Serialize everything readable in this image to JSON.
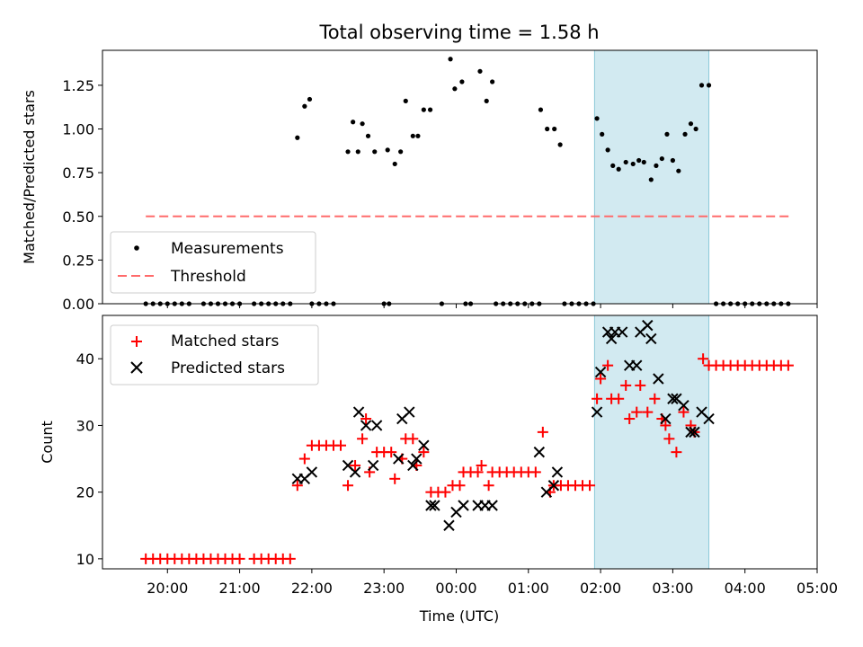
{
  "chart_data": [
    {
      "type": "scatter",
      "title": "Total observing time = 1.58 h",
      "xlabel": "",
      "ylabel": "Matched/Predicted stars",
      "xlim": [
        -4.9,
        5.0
      ],
      "ylim": [
        0,
        1.45
      ],
      "yticks": [
        "0.00",
        "0.25",
        "0.50",
        "0.75",
        "1.00",
        "1.25"
      ],
      "grid": false,
      "legend_position": "lower-left",
      "shaded_interval": {
        "start": "01:55",
        "end": "03:30",
        "color": "#add8e6"
      },
      "threshold": {
        "name": "Threshold",
        "value": 0.5,
        "x_range": [
          -4.3,
          4.65
        ],
        "color": "#ff0000",
        "style": "dashed"
      },
      "series": [
        {
          "name": "Measurements",
          "color": "#000000",
          "marker": "dot",
          "points": [
            [
              -4.3,
              0
            ],
            [
              -4.2,
              0
            ],
            [
              -4.1,
              0
            ],
            [
              -4.0,
              0
            ],
            [
              -3.9,
              0
            ],
            [
              -3.8,
              0
            ],
            [
              -3.7,
              0
            ],
            [
              -3.5,
              0
            ],
            [
              -3.4,
              0
            ],
            [
              -3.3,
              0
            ],
            [
              -3.2,
              0
            ],
            [
              -3.1,
              0
            ],
            [
              -3.0,
              0
            ],
            [
              -2.8,
              0
            ],
            [
              -2.7,
              0
            ],
            [
              -2.6,
              0
            ],
            [
              -2.5,
              0
            ],
            [
              -2.4,
              0
            ],
            [
              -2.3,
              0
            ],
            [
              -2.2,
              0.95
            ],
            [
              -2.1,
              1.13
            ],
            [
              -2.03,
              1.17
            ],
            [
              -2.0,
              0
            ],
            [
              -1.9,
              0
            ],
            [
              -1.8,
              0
            ],
            [
              -1.7,
              0
            ],
            [
              -1.5,
              0.87
            ],
            [
              -1.43,
              1.04
            ],
            [
              -1.36,
              0.87
            ],
            [
              -1.3,
              1.03
            ],
            [
              -1.22,
              0.96
            ],
            [
              -1.13,
              0.87
            ],
            [
              -1.0,
              0
            ],
            [
              -0.93,
              0
            ],
            [
              -0.95,
              0.88
            ],
            [
              -0.85,
              0.8
            ],
            [
              -0.77,
              0.87
            ],
            [
              -0.7,
              1.16
            ],
            [
              -0.6,
              0.96
            ],
            [
              -0.53,
              0.96
            ],
            [
              -0.45,
              1.11
            ],
            [
              -0.36,
              1.11
            ],
            [
              -0.2,
              0
            ],
            [
              -0.08,
              1.4
            ],
            [
              -0.02,
              1.23
            ],
            [
              0.08,
              1.27
            ],
            [
              0.13,
              0
            ],
            [
              0.2,
              0
            ],
            [
              0.33,
              1.33
            ],
            [
              0.42,
              1.16
            ],
            [
              0.5,
              1.27
            ],
            [
              0.55,
              0
            ],
            [
              0.65,
              0
            ],
            [
              0.75,
              0
            ],
            [
              0.85,
              0
            ],
            [
              0.95,
              0
            ],
            [
              1.05,
              0
            ],
            [
              1.15,
              0
            ],
            [
              1.17,
              1.11
            ],
            [
              1.26,
              1.0
            ],
            [
              1.36,
              1.0
            ],
            [
              1.44,
              0.91
            ],
            [
              1.5,
              0
            ],
            [
              1.6,
              0
            ],
            [
              1.7,
              0
            ],
            [
              1.8,
              0
            ],
            [
              1.9,
              0
            ],
            [
              1.95,
              1.06
            ],
            [
              2.02,
              0.97
            ],
            [
              2.1,
              0.88
            ],
            [
              2.17,
              0.79
            ],
            [
              2.25,
              0.77
            ],
            [
              2.35,
              0.81
            ],
            [
              2.45,
              0.8
            ],
            [
              2.53,
              0.82
            ],
            [
              2.6,
              0.81
            ],
            [
              2.7,
              0.71
            ],
            [
              2.77,
              0.79
            ],
            [
              2.85,
              0.83
            ],
            [
              2.92,
              0.97
            ],
            [
              3.0,
              0.82
            ],
            [
              3.08,
              0.76
            ],
            [
              3.17,
              0.97
            ],
            [
              3.25,
              1.03
            ],
            [
              3.32,
              1.0
            ],
            [
              3.4,
              1.25
            ],
            [
              3.5,
              1.25
            ],
            [
              3.6,
              0
            ],
            [
              3.7,
              0
            ],
            [
              3.8,
              0
            ],
            [
              3.9,
              0
            ],
            [
              4.0,
              0
            ],
            [
              4.1,
              0
            ],
            [
              4.2,
              0
            ],
            [
              4.3,
              0
            ],
            [
              4.4,
              0
            ],
            [
              4.5,
              0
            ],
            [
              4.6,
              0
            ]
          ]
        },
        {
          "name": "Threshold",
          "color": "#ff0000",
          "marker": "dashed-line",
          "points": []
        }
      ]
    },
    {
      "type": "scatter",
      "title": "",
      "xlabel": "Time (UTC)",
      "ylabel": "Count",
      "xlim": [
        -4.9,
        5.0
      ],
      "ylim": [
        8.5,
        46.5
      ],
      "xticks": [
        "20:00",
        "21:00",
        "22:00",
        "23:00",
        "00:00",
        "01:00",
        "02:00",
        "03:00",
        "04:00",
        "05:00"
      ],
      "yticks": [
        "10",
        "20",
        "30",
        "40"
      ],
      "grid": false,
      "legend_position": "upper-left",
      "shaded_interval": {
        "start": "01:55",
        "end": "03:30",
        "color": "#add8e6"
      },
      "series": [
        {
          "name": "Matched stars",
          "color": "#ff0000",
          "marker": "plus",
          "points": [
            [
              -4.3,
              10
            ],
            [
              -4.2,
              10
            ],
            [
              -4.1,
              10
            ],
            [
              -4.0,
              10
            ],
            [
              -3.9,
              10
            ],
            [
              -3.8,
              10
            ],
            [
              -3.7,
              10
            ],
            [
              -3.6,
              10
            ],
            [
              -3.5,
              10
            ],
            [
              -3.4,
              10
            ],
            [
              -3.3,
              10
            ],
            [
              -3.2,
              10
            ],
            [
              -3.1,
              10
            ],
            [
              -3.0,
              10
            ],
            [
              -2.8,
              10
            ],
            [
              -2.7,
              10
            ],
            [
              -2.6,
              10
            ],
            [
              -2.5,
              10
            ],
            [
              -2.4,
              10
            ],
            [
              -2.3,
              10
            ],
            [
              -2.2,
              21
            ],
            [
              -2.1,
              25
            ],
            [
              -2.0,
              27
            ],
            [
              -1.9,
              27
            ],
            [
              -1.8,
              27
            ],
            [
              -1.7,
              27
            ],
            [
              -1.6,
              27
            ],
            [
              -1.5,
              21
            ],
            [
              -1.4,
              24
            ],
            [
              -1.3,
              28
            ],
            [
              -1.25,
              31
            ],
            [
              -1.2,
              23
            ],
            [
              -1.1,
              26
            ],
            [
              -1.0,
              26
            ],
            [
              -0.9,
              26
            ],
            [
              -0.85,
              22
            ],
            [
              -0.75,
              25
            ],
            [
              -0.7,
              28
            ],
            [
              -0.6,
              28
            ],
            [
              -0.55,
              24
            ],
            [
              -0.45,
              26
            ],
            [
              -0.35,
              20
            ],
            [
              -0.25,
              20
            ],
            [
              -0.15,
              20
            ],
            [
              -0.05,
              21
            ],
            [
              0.05,
              21
            ],
            [
              0.1,
              23
            ],
            [
              0.2,
              23
            ],
            [
              0.3,
              23
            ],
            [
              0.35,
              24
            ],
            [
              0.45,
              21
            ],
            [
              0.5,
              23
            ],
            [
              0.6,
              23
            ],
            [
              0.7,
              23
            ],
            [
              0.8,
              23
            ],
            [
              0.9,
              23
            ],
            [
              1.0,
              23
            ],
            [
              1.1,
              23
            ],
            [
              1.2,
              29
            ],
            [
              1.3,
              20
            ],
            [
              1.35,
              21
            ],
            [
              1.45,
              21
            ],
            [
              1.55,
              21
            ],
            [
              1.65,
              21
            ],
            [
              1.75,
              21
            ],
            [
              1.85,
              21
            ],
            [
              1.95,
              34
            ],
            [
              2.0,
              37
            ],
            [
              2.1,
              39
            ],
            [
              2.15,
              34
            ],
            [
              2.25,
              34
            ],
            [
              2.35,
              36
            ],
            [
              2.4,
              31
            ],
            [
              2.5,
              32
            ],
            [
              2.55,
              36
            ],
            [
              2.65,
              32
            ],
            [
              2.75,
              34
            ],
            [
              2.85,
              31
            ],
            [
              2.9,
              30
            ],
            [
              2.95,
              28
            ],
            [
              3.05,
              26
            ],
            [
              3.15,
              32
            ],
            [
              3.25,
              30
            ],
            [
              3.3,
              29
            ],
            [
              3.42,
              40
            ],
            [
              3.5,
              39
            ],
            [
              3.6,
              39
            ],
            [
              3.7,
              39
            ],
            [
              3.8,
              39
            ],
            [
              3.9,
              39
            ],
            [
              4.0,
              39
            ],
            [
              4.1,
              39
            ],
            [
              4.2,
              39
            ],
            [
              4.3,
              39
            ],
            [
              4.4,
              39
            ],
            [
              4.5,
              39
            ],
            [
              4.6,
              39
            ]
          ]
        },
        {
          "name": "Predicted stars",
          "color": "#000000",
          "marker": "x",
          "points": [
            [
              -2.2,
              22
            ],
            [
              -2.1,
              22
            ],
            [
              -2.0,
              23
            ],
            [
              -1.5,
              24
            ],
            [
              -1.4,
              23
            ],
            [
              -1.35,
              32
            ],
            [
              -1.25,
              30
            ],
            [
              -1.15,
              24
            ],
            [
              -1.1,
              30
            ],
            [
              -0.8,
              25
            ],
            [
              -0.75,
              31
            ],
            [
              -0.65,
              32
            ],
            [
              -0.6,
              24
            ],
            [
              -0.55,
              25
            ],
            [
              -0.45,
              27
            ],
            [
              -0.35,
              18
            ],
            [
              -0.3,
              18
            ],
            [
              -0.1,
              15
            ],
            [
              0.0,
              17
            ],
            [
              0.1,
              18
            ],
            [
              0.3,
              18
            ],
            [
              0.4,
              18
            ],
            [
              0.5,
              18
            ],
            [
              1.15,
              26
            ],
            [
              1.25,
              20
            ],
            [
              1.35,
              21
            ],
            [
              1.4,
              23
            ],
            [
              1.95,
              32
            ],
            [
              2.0,
              38
            ],
            [
              2.1,
              44
            ],
            [
              2.15,
              43
            ],
            [
              2.2,
              44
            ],
            [
              2.3,
              44
            ],
            [
              2.4,
              39
            ],
            [
              2.5,
              39
            ],
            [
              2.55,
              44
            ],
            [
              2.65,
              45
            ],
            [
              2.7,
              43
            ],
            [
              2.8,
              37
            ],
            [
              2.9,
              31
            ],
            [
              3.0,
              34
            ],
            [
              3.05,
              34
            ],
            [
              3.15,
              33
            ],
            [
              3.25,
              29
            ],
            [
              3.3,
              29
            ],
            [
              3.4,
              32
            ],
            [
              3.5,
              31
            ]
          ]
        }
      ]
    }
  ]
}
